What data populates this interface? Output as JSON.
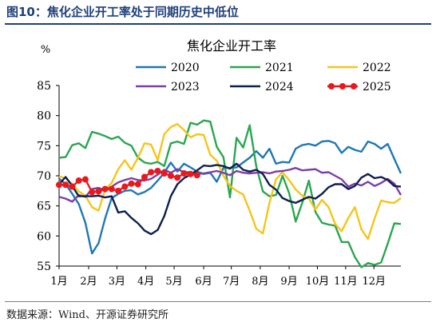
{
  "figure": {
    "label": "图10：焦化企业开工率处于同期历史中低位",
    "source": "数据来源：Wind、开源证券研究所"
  },
  "chart_data": {
    "type": "line",
    "title": "焦化企业开工率",
    "unit": "%",
    "ylim": [
      55,
      85
    ],
    "yticks": [
      55,
      60,
      65,
      70,
      75,
      80,
      85
    ],
    "xlim": [
      1,
      53
    ],
    "xticks": [
      {
        "x": 1,
        "label": "1月"
      },
      {
        "x": 5.5,
        "label": "2月"
      },
      {
        "x": 9.8,
        "label": "3月"
      },
      {
        "x": 14.2,
        "label": "4月"
      },
      {
        "x": 18.5,
        "label": "5月"
      },
      {
        "x": 23,
        "label": "6月"
      },
      {
        "x": 27.2,
        "label": "7月"
      },
      {
        "x": 31.6,
        "label": "8月"
      },
      {
        "x": 36,
        "label": "9月"
      },
      {
        "x": 40.3,
        "label": "10月"
      },
      {
        "x": 44.6,
        "label": "11月"
      },
      {
        "x": 48.9,
        "label": "12月"
      }
    ],
    "legend_position": "top",
    "series": [
      {
        "name": "2020",
        "color": "#1f78b4",
        "values": [
          69.5,
          68.6,
          67.0,
          65.3,
          62.2,
          57.1,
          58.8,
          62.9,
          66.3,
          67.0,
          67.5,
          67.6,
          66.9,
          67.3,
          68.0,
          69.2,
          70.5,
          72.2,
          70.7,
          72.0,
          71.4,
          70.7,
          70.3,
          70.5,
          69.0,
          71.3,
          71.3,
          71.4,
          72.2,
          73.0,
          74.1,
          73.0,
          74.5,
          72.0,
          72.3,
          72.2,
          74.5,
          75.1,
          75.3,
          75.0,
          75.7,
          75.8,
          75.4,
          73.8,
          74.8,
          74.3,
          74.0,
          75.7,
          75.3,
          74.5,
          75.3,
          72.8,
          70.4
        ]
      },
      {
        "name": "2021",
        "color": "#2aa64f",
        "values": [
          73.0,
          73.1,
          75.1,
          75.4,
          74.6,
          77.3,
          77.0,
          76.6,
          76.1,
          76.5,
          75.5,
          75.0,
          73.0,
          72.2,
          72.0,
          72.3,
          71.6,
          75.4,
          75.7,
          75.3,
          78.8,
          78.5,
          79.2,
          79.0,
          74.8,
          73.1,
          66.4,
          76.3,
          74.7,
          78.4,
          71.6,
          67.4,
          66.6,
          66.8,
          70.0,
          67.1,
          62.4,
          65.5,
          69.2,
          64.0,
          62.2,
          61.9,
          61.7,
          59.0,
          59.0,
          56.5,
          54.8,
          55.5,
          55.2,
          55.6,
          58.7,
          62.1,
          62.0
        ]
      },
      {
        "name": "2022",
        "color": "#f5c518",
        "values": [
          69.9,
          69.6,
          68.6,
          67.4,
          66.7,
          64.8,
          64.2,
          67.7,
          68.8,
          71.1,
          72.6,
          71.0,
          73.0,
          75.4,
          75.2,
          72.6,
          76.9,
          78.1,
          78.6,
          77.6,
          76.4,
          76.9,
          76.8,
          73.5,
          72.5,
          70.0,
          68.3,
          67.5,
          66.9,
          64.2,
          61.2,
          60.4,
          65.5,
          69.4,
          70.6,
          69.3,
          67.7,
          66.7,
          66.2,
          64.4,
          66.0,
          64.8,
          62.0,
          60.8,
          63.0,
          64.8,
          61.1,
          59.5,
          62.9,
          65.9,
          65.6,
          65.5,
          66.3
        ]
      },
      {
        "name": "2023",
        "color": "#7b3fa3",
        "values": [
          66.5,
          66.2,
          65.7,
          66.8,
          66.5,
          67.8,
          68.0,
          67.6,
          68.2,
          68.9,
          69.3,
          69.6,
          69.3,
          69.2,
          69.5,
          70.2,
          71.0,
          70.5,
          71.1,
          70.6,
          70.6,
          70.3,
          70.4,
          70.6,
          70.8,
          70.5,
          70.1,
          70.8,
          70.5,
          70.4,
          70.5,
          70.6,
          70.4,
          70.7,
          70.8,
          71.0,
          71.3,
          70.9,
          71.0,
          71.1,
          70.5,
          70.6,
          70.0,
          69.4,
          68.2,
          68.7,
          68.4,
          69.0,
          68.3,
          68.8,
          69.5,
          68.7,
          66.8
        ]
      },
      {
        "name": "2024",
        "color": "#0d1f4f",
        "values": [
          68.6,
          69.8,
          68.3,
          66.6,
          66.6,
          66.6,
          66.7,
          66.4,
          66.6,
          63.9,
          64.1,
          63.0,
          62.1,
          60.9,
          60.3,
          61.0,
          63.3,
          66.6,
          68.6,
          69.6,
          70.2,
          70.9,
          71.7,
          71.6,
          71.8,
          71.6,
          71.2,
          72.0,
          71.0,
          70.7,
          71.0,
          70.3,
          68.5,
          67.7,
          66.3,
          65.8,
          65.5,
          66.0,
          66.5,
          66.2,
          67.0,
          68.1,
          68.6,
          68.6,
          67.8,
          68.3,
          69.7,
          70.3,
          69.6,
          69.8,
          69.3,
          68.3,
          68.2
        ]
      },
      {
        "name": "2025",
        "color": "#e8191e",
        "marker": "circle",
        "values": [
          68.5,
          68.5,
          68.2,
          69.2,
          69.4,
          67.3,
          67.4,
          67.8,
          67.8,
          67.5,
          68.2,
          68.7,
          68.6,
          69.8,
          70.6,
          70.8,
          70.4,
          70.0,
          69.7,
          70.4,
          70.3,
          70.1
        ]
      }
    ]
  }
}
